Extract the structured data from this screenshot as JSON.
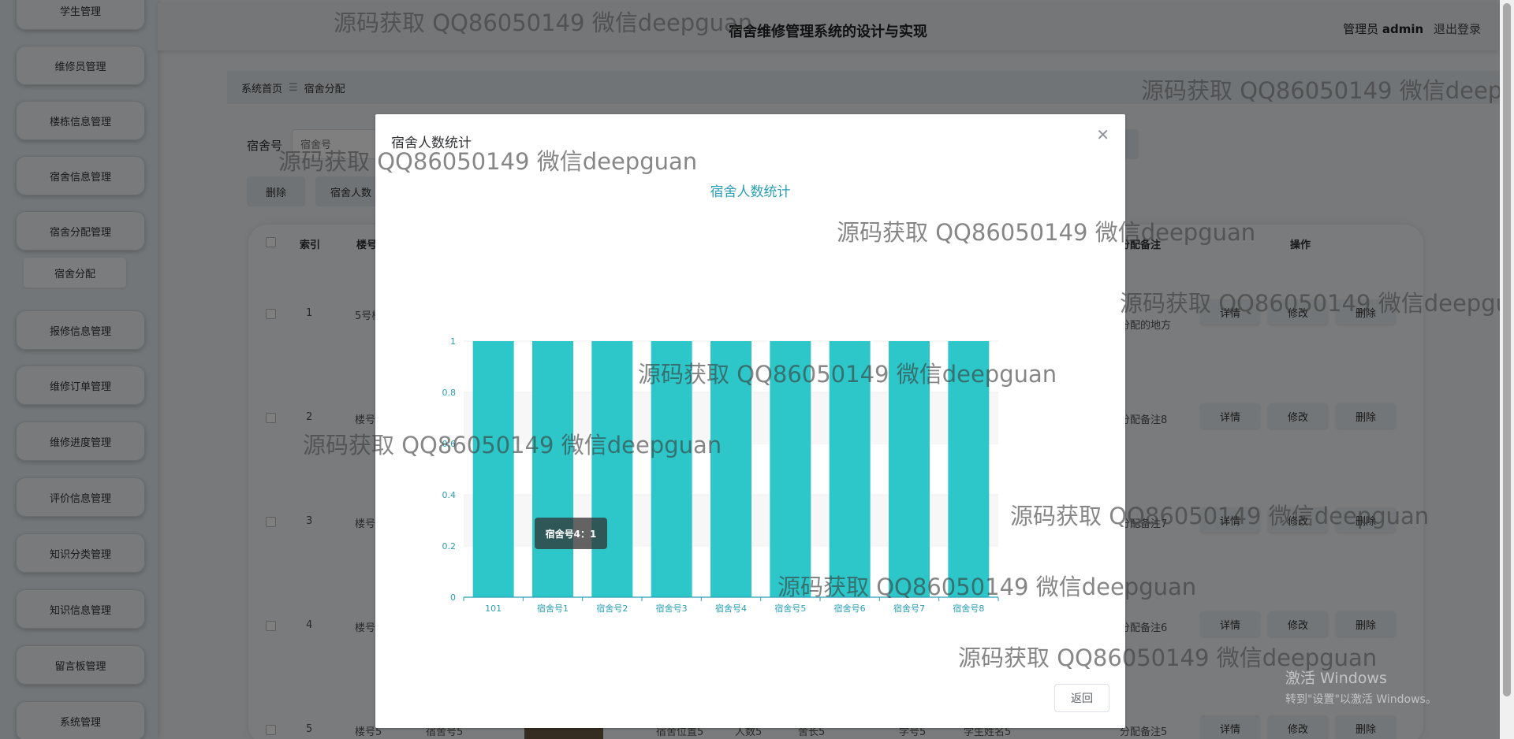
{
  "app": {
    "title": "宿舍维修管理系统的设计与实现",
    "user_role": "管理员",
    "user_name": "admin",
    "logout": "退出登录"
  },
  "sidebar": {
    "items": [
      {
        "label": "学生管理"
      },
      {
        "label": "维修员管理"
      },
      {
        "label": "楼栋信息管理"
      },
      {
        "label": "宿舍信息管理"
      },
      {
        "label": "宿舍分配管理"
      },
      {
        "label": "报修信息管理"
      },
      {
        "label": "维修订单管理"
      },
      {
        "label": "维修进度管理"
      },
      {
        "label": "评价信息管理"
      },
      {
        "label": "知识分类管理"
      },
      {
        "label": "知识信息管理"
      },
      {
        "label": "留言板管理"
      },
      {
        "label": "系统管理"
      }
    ],
    "submenu": {
      "label": "宿舍分配"
    }
  },
  "breadcrumb": {
    "home": "系统首页",
    "separator": "☰",
    "current": "宿舍分配"
  },
  "search": {
    "label": "宿舍号",
    "placeholder": "宿舍号"
  },
  "toolbar": {
    "delete_label": "删除",
    "stats_label": "宿舍人数"
  },
  "table": {
    "headers": {
      "index": "索引",
      "building": "楼号",
      "remark": "分配备注",
      "ops": "操作"
    },
    "rows": [
      {
        "index": "1",
        "building": "5号楼",
        "remark": "分配的地方"
      },
      {
        "index": "2",
        "building": "楼号",
        "remark": "分配备注8"
      },
      {
        "index": "3",
        "building": "楼号",
        "remark": "分配备注7"
      },
      {
        "index": "4",
        "building": "楼号",
        "remark": "分配备注6"
      },
      {
        "index": "5",
        "building": "楼号5",
        "remark": "分配备注5"
      }
    ],
    "row5_extra": [
      "宿舍号5",
      "宿舍位置5",
      "人数5",
      "舍长5",
      "学号5",
      "学生姓名5"
    ],
    "btn_detail": "详情",
    "btn_edit": "修改",
    "btn_delete": "删除"
  },
  "dialog": {
    "title": "宿舍人数统计",
    "close_icon": "close-icon",
    "back_label": "返回",
    "tooltip": "宿舍号4：1"
  },
  "chart_data": {
    "type": "bar",
    "title": "宿舍人数统计",
    "categories": [
      "101",
      "宿舍号1",
      "宿舍号2",
      "宿舍号3",
      "宿舍号4",
      "宿舍号5",
      "宿舍号6",
      "宿舍号7",
      "宿舍号8"
    ],
    "values": [
      1,
      1,
      1,
      1,
      1,
      1,
      1,
      1,
      1
    ],
    "ylim": [
      0,
      1
    ],
    "yticks": [
      "0",
      "0.2",
      "0.4",
      "0.6",
      "0.8",
      "1"
    ],
    "grid": true,
    "color": "#2ec7c9"
  },
  "watermark": "源码获取 QQ86050149 微信deepguan",
  "windows": {
    "line1": "激活 Windows",
    "line2": "转到\"设置\"以激活 Windows。"
  }
}
